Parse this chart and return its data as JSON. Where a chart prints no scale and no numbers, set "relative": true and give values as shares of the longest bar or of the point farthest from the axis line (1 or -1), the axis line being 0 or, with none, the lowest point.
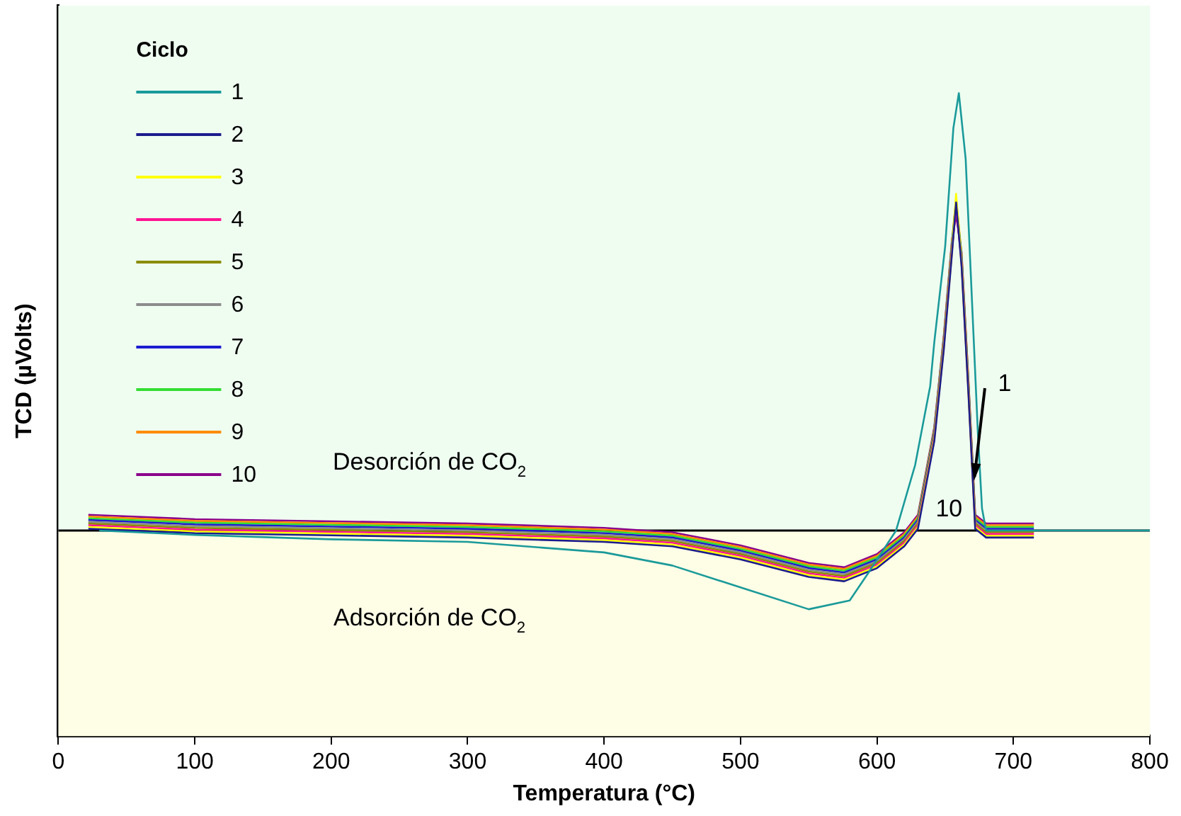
{
  "chart_data": {
    "type": "line",
    "relative": true,
    "xlabel": "Temperatura (°C)",
    "ylabel": "TCD (µVolts)",
    "legend_title": "Ciclo",
    "legend": "top left",
    "grid": false,
    "marker": "none",
    "line_style": "solid",
    "xlim": [
      0,
      800
    ],
    "xticks": [
      0,
      100,
      200,
      300,
      400,
      500,
      600,
      700,
      800
    ],
    "bands": [
      {
        "axis": "y",
        "from": 0,
        "to": 1.2,
        "label": "Desorción de CO$_{2}$",
        "color": "#effdf1"
      },
      {
        "axis": "y",
        "from": -0.47,
        "to": 0,
        "label": "Adsorción de CO$_{2}$",
        "color": "#fefde6"
      }
    ],
    "ref_lines": [
      {
        "axis": "y",
        "value": 0,
        "color": "#000000"
      }
    ],
    "annotations": [
      "1",
      "10"
    ],
    "series": [
      {
        "name": "1",
        "color": "#1a9a9a",
        "x": [
          30,
          100,
          200,
          300,
          400,
          450,
          500,
          550,
          580,
          593,
          614,
          628,
          639,
          642,
          650,
          656,
          660,
          665,
          670,
          674,
          677,
          680,
          700,
          800
        ],
        "values": [
          0,
          -0.01,
          -0.02,
          -0.026,
          -0.05,
          -0.08,
          -0.13,
          -0.18,
          -0.16,
          -0.1,
          0,
          0.15,
          0.33,
          0.43,
          0.65,
          0.92,
          1,
          0.85,
          0.5,
          0.22,
          0.05,
          0,
          0,
          0
        ]
      },
      {
        "name": "2",
        "color": "#1c1c8c",
        "x": [
          22,
          100,
          200,
          300,
          400,
          450,
          500,
          550,
          576,
          600,
          620,
          630,
          642,
          649,
          655,
          658,
          662,
          667,
          672,
          680,
          715
        ],
        "values": [
          0.004,
          -0.006,
          -0.011,
          -0.016,
          -0.026,
          -0.036,
          -0.066,
          -0.106,
          -0.116,
          -0.086,
          -0.036,
          0.004,
          0.204,
          0.414,
          0.634,
          0.75,
          0.604,
          0.314,
          0.004,
          -0.016,
          -0.016
        ]
      },
      {
        "name": "3",
        "color": "#ffff00",
        "x": [
          22,
          100,
          200,
          300,
          400,
          450,
          500,
          550,
          576,
          600,
          620,
          630,
          642,
          649,
          655,
          658,
          662,
          667,
          672,
          680,
          715
        ],
        "values": [
          0.008,
          -0.002,
          -0.007,
          -0.012,
          -0.022,
          -0.032,
          -0.062,
          -0.102,
          -0.112,
          -0.082,
          -0.032,
          0.008,
          0.208,
          0.418,
          0.638,
          0.77,
          0.608,
          0.318,
          0.008,
          -0.012,
          -0.012
        ]
      },
      {
        "name": "4",
        "color": "#ff1493",
        "x": [
          22,
          100,
          200,
          300,
          400,
          450,
          500,
          550,
          576,
          600,
          620,
          630,
          642,
          649,
          655,
          658,
          662,
          667,
          672,
          680,
          715
        ],
        "values": [
          0.012,
          0.002,
          -0.003,
          -0.008,
          -0.018,
          -0.028,
          -0.058,
          -0.098,
          -0.108,
          -0.078,
          -0.028,
          0.012,
          0.212,
          0.422,
          0.642,
          0.74,
          0.612,
          0.322,
          0.012,
          -0.008,
          -0.008
        ]
      },
      {
        "name": "5",
        "color": "#8b8b00",
        "x": [
          22,
          100,
          200,
          300,
          400,
          450,
          500,
          550,
          576,
          600,
          620,
          630,
          642,
          649,
          655,
          658,
          662,
          667,
          672,
          680,
          715
        ],
        "values": [
          0.016,
          0.006,
          0.001,
          -0.004,
          -0.014,
          -0.024,
          -0.054,
          -0.094,
          -0.104,
          -0.074,
          -0.024,
          0.016,
          0.216,
          0.426,
          0.646,
          0.75,
          0.616,
          0.326,
          0.016,
          -0.004,
          -0.004
        ]
      },
      {
        "name": "6",
        "color": "#8c8c8c",
        "x": [
          22,
          100,
          200,
          300,
          400,
          450,
          500,
          550,
          576,
          600,
          620,
          630,
          642,
          649,
          655,
          658,
          662,
          667,
          672,
          680,
          715
        ],
        "values": [
          0.02,
          0.01,
          0.005,
          0,
          -0.01,
          -0.02,
          -0.05,
          -0.09,
          -0.1,
          -0.07,
          -0.02,
          0.02,
          0.22,
          0.43,
          0.65,
          0.74,
          0.62,
          0.33,
          0.02,
          0,
          0
        ]
      },
      {
        "name": "7",
        "color": "#1c1cd0",
        "x": [
          22,
          100,
          200,
          300,
          400,
          450,
          500,
          550,
          576,
          600,
          620,
          630,
          642,
          649,
          655,
          658,
          662,
          667,
          672,
          680,
          715
        ],
        "values": [
          0.024,
          0.014,
          0.009,
          0.004,
          -0.006,
          -0.016,
          -0.046,
          -0.086,
          -0.096,
          -0.066,
          -0.016,
          0.024,
          0.224,
          0.434,
          0.654,
          0.745,
          0.624,
          0.334,
          0.024,
          0.004,
          0.004
        ]
      },
      {
        "name": "8",
        "color": "#33dd33",
        "x": [
          22,
          100,
          200,
          300,
          400,
          450,
          500,
          550,
          576,
          600,
          620,
          630,
          642,
          649,
          655,
          658,
          662,
          667,
          672,
          680,
          715
        ],
        "values": [
          0.028,
          0.018,
          0.013,
          0.008,
          -0.002,
          -0.012,
          -0.042,
          -0.082,
          -0.092,
          -0.062,
          -0.012,
          0.028,
          0.228,
          0.438,
          0.658,
          0.755,
          0.628,
          0.338,
          0.028,
          0.008,
          0.008
        ]
      },
      {
        "name": "9",
        "color": "#ff8c00",
        "x": [
          22,
          100,
          200,
          300,
          400,
          450,
          500,
          550,
          576,
          600,
          620,
          630,
          642,
          649,
          655,
          658,
          662,
          667,
          672,
          680,
          715
        ],
        "values": [
          0.032,
          0.022,
          0.017,
          0.012,
          0.002,
          -0.008,
          -0.038,
          -0.078,
          -0.088,
          -0.058,
          -0.008,
          0.032,
          0.232,
          0.442,
          0.662,
          0.76,
          0.632,
          0.342,
          0.032,
          0.012,
          0.012
        ]
      },
      {
        "name": "10",
        "color": "#8b008b",
        "x": [
          22,
          100,
          200,
          300,
          400,
          450,
          500,
          550,
          576,
          600,
          620,
          630,
          642,
          649,
          655,
          658,
          662,
          667,
          672,
          680,
          715
        ],
        "values": [
          0.036,
          0.026,
          0.021,
          0.016,
          0.006,
          -0.004,
          -0.034,
          -0.074,
          -0.084,
          -0.054,
          -0.004,
          0.036,
          0.236,
          0.446,
          0.666,
          0.72,
          0.636,
          0.346,
          0.036,
          0.016,
          0.016
        ]
      }
    ]
  }
}
